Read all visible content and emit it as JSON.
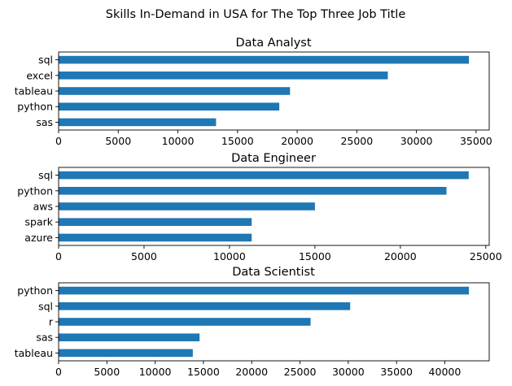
{
  "figure": {
    "suptitle": "Skills In-Demand in USA for The Top Three Job Title",
    "bar_color": "#1f77b4"
  },
  "chart_data": [
    {
      "type": "bar",
      "orientation": "horizontal",
      "title": "Data Analyst",
      "categories": [
        "sql",
        "excel",
        "tableau",
        "python",
        "sas"
      ],
      "values": [
        34400,
        27600,
        19400,
        18500,
        13200
      ],
      "xlim": [
        0,
        36100
      ],
      "xticks": [
        0,
        5000,
        10000,
        15000,
        20000,
        25000,
        30000,
        35000
      ],
      "xlabel": "",
      "ylabel": "",
      "grid": false
    },
    {
      "type": "bar",
      "orientation": "horizontal",
      "title": "Data Engineer",
      "categories": [
        "sql",
        "python",
        "aws",
        "spark",
        "azure"
      ],
      "values": [
        24000,
        22700,
        15000,
        11300,
        11300
      ],
      "xlim": [
        0,
        25200
      ],
      "xticks": [
        0,
        5000,
        10000,
        15000,
        20000,
        25000
      ],
      "xlabel": "",
      "ylabel": "",
      "grid": false
    },
    {
      "type": "bar",
      "orientation": "horizontal",
      "title": "Data Scientist",
      "categories": [
        "python",
        "sql",
        "r",
        "sas",
        "tableau"
      ],
      "values": [
        42500,
        30200,
        26100,
        14600,
        13900
      ],
      "xlim": [
        0,
        44600
      ],
      "xticks": [
        0,
        5000,
        10000,
        15000,
        20000,
        25000,
        30000,
        35000,
        40000
      ],
      "xlabel": "",
      "ylabel": "",
      "grid": false
    }
  ]
}
